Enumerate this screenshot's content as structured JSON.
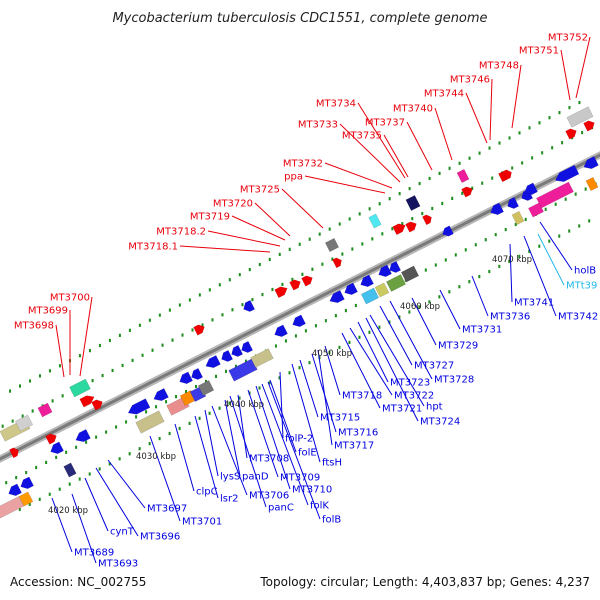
{
  "title": "Mycobacterium tuberculosis CDC1551, complete genome",
  "footer": {
    "accession": "Accession: NC_002755",
    "summary": "Topology: circular; Length: 4,403,837 bp; Genes: 4,237"
  },
  "colors": {
    "forward_label": "#e8000b",
    "reverse_label": "#0000e0",
    "trna_label": "#22b8e8",
    "backbone": "#8a8a8a",
    "tick": "#1e8c1e"
  },
  "kbp_ticks": [
    "4020 kbp",
    "4030 kbp",
    "4040 kbp",
    "4050 kbp",
    "4060 kbp",
    "4070 kbp"
  ],
  "forward_genes": [
    "MT3698",
    "MT3699",
    "MT3700",
    "MT3718.1",
    "MT3718.2",
    "MT3719",
    "MT3720",
    "MT3725",
    "ppa",
    "MT3732",
    "MT3733",
    "MT3734",
    "MT3735",
    "MT3737",
    "MT3740",
    "MT3744",
    "MT3746",
    "MT3748",
    "MT3751",
    "MT3752"
  ],
  "reverse_genes": [
    "MT3689",
    "MT3693",
    "cynT",
    "MT3696",
    "MT3697",
    "MT3701",
    "clpC",
    "lsr2",
    "lysS",
    "MT3706",
    "panD",
    "panC",
    "MT3708",
    "MT3709",
    "MT3710",
    "folE",
    "folK",
    "folP-2",
    "folB",
    "ftsH",
    "MT3715",
    "MT3716",
    "MT3717",
    "MT3718",
    "MT3721",
    "MT3722",
    "MT3723",
    "hpt",
    "MT3724",
    "MT3727",
    "MT3728",
    "MT3729",
    "MT3731",
    "MT3736",
    "MT3741",
    "MT3742",
    "holB"
  ],
  "trna_genes": [
    "MTt39"
  ]
}
